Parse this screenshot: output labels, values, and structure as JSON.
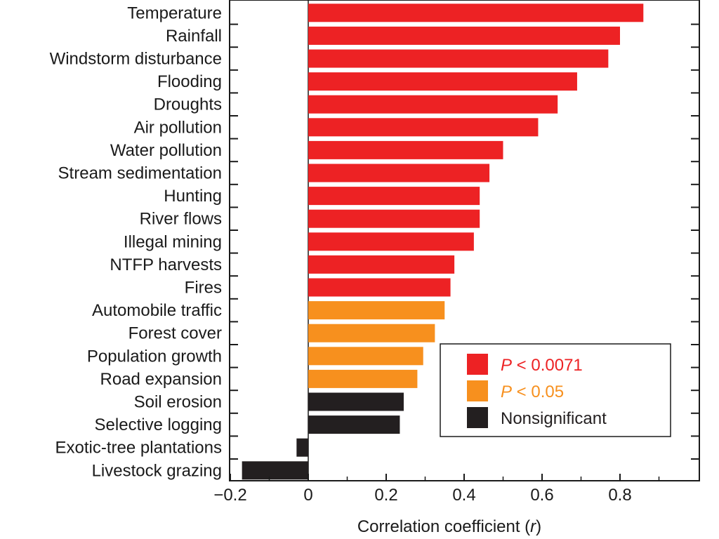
{
  "chart_data": {
    "type": "bar",
    "orientation": "horizontal",
    "categories": [
      "Temperature",
      "Rainfall",
      "Windstorm disturbance",
      "Flooding",
      "Droughts",
      "Air pollution",
      "Water pollution",
      "Stream sedimentation",
      "Hunting",
      "River flows",
      "Illegal mining",
      "NTFP harvests",
      "Fires",
      "Automobile traffic",
      "Forest cover",
      "Population growth",
      "Road expansion",
      "Soil erosion",
      "Selective logging",
      "Exotic-tree plantations",
      "Livestock grazing"
    ],
    "values": [
      0.86,
      0.8,
      0.77,
      0.69,
      0.64,
      0.59,
      0.5,
      0.465,
      0.44,
      0.44,
      0.425,
      0.375,
      0.365,
      0.35,
      0.325,
      0.295,
      0.28,
      0.245,
      0.235,
      -0.03,
      -0.17
    ],
    "significance": [
      "p0071",
      "p0071",
      "p0071",
      "p0071",
      "p0071",
      "p0071",
      "p0071",
      "p0071",
      "p0071",
      "p0071",
      "p0071",
      "p0071",
      "p0071",
      "p05",
      "p05",
      "p05",
      "p05",
      "ns",
      "ns",
      "ns",
      "ns"
    ],
    "xlim": [
      -0.22,
      1.0
    ],
    "xticks": [
      -0.2,
      0,
      0.2,
      0.4,
      0.6,
      0.8
    ],
    "xtick_labels": [
      "−0.2",
      "0",
      "0.2",
      "0.4",
      "0.6",
      "0.8"
    ],
    "xlabel_main": "Correlation coefficient (",
    "xlabel_var": "r",
    "xlabel_end": ")",
    "grid": false,
    "legend_position": "lower-right",
    "legend": [
      {
        "key": "p0071",
        "prefix": "P",
        "text": " < 0.0071",
        "color": "#ed2224",
        "text_color": "#ed2224"
      },
      {
        "key": "p05",
        "prefix": "P",
        "text": " < 0.05",
        "color": "#f7901e",
        "text_color": "#f7901e"
      },
      {
        "key": "ns",
        "prefix": "",
        "text": "Nonsignificant",
        "color": "#231f20",
        "text_color": "#231f20"
      }
    ]
  }
}
